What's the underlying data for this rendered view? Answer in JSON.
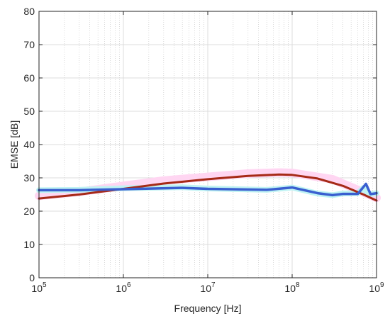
{
  "chart_data": {
    "type": "line",
    "title": "",
    "xlabel": "Frequency [Hz]",
    "ylabel": "EMSE [dB]",
    "xscale": "log",
    "xlim": [
      100000,
      1000000000
    ],
    "ylim": [
      0,
      80
    ],
    "grid": true,
    "legend": "none",
    "x_ticks": [
      {
        "base": "10",
        "exp": "5",
        "value": 100000
      },
      {
        "base": "10",
        "exp": "6",
        "value": 1000000
      },
      {
        "base": "10",
        "exp": "7",
        "value": 10000000
      },
      {
        "base": "10",
        "exp": "8",
        "value": 100000000
      },
      {
        "base": "10",
        "exp": "9",
        "value": 1000000000
      }
    ],
    "y_ticks": [
      "0",
      "10",
      "20",
      "30",
      "40",
      "50",
      "60",
      "70",
      "80"
    ],
    "series": [
      {
        "color": "#ffd6f2",
        "width": 12,
        "x": [
          100000,
          300000,
          1000000,
          3000000,
          10000000,
          30000000,
          70000000,
          100000000,
          300000000,
          1000000000
        ],
        "y": [
          24.6,
          25.8,
          27.6,
          29.2,
          30.3,
          31.3,
          31.6,
          31.5,
          29.6,
          24.0
        ]
      },
      {
        "color": "#bff3f3",
        "width": 8,
        "x": [
          100000,
          300000,
          1000000,
          5000000,
          10000000,
          50000000,
          100000000,
          200000000,
          300000000,
          400000000,
          600000000,
          700000000,
          800000000,
          1000000000
        ],
        "y": [
          26.3,
          26.4,
          26.9,
          27.2,
          26.8,
          26.4,
          27.1,
          25.3,
          24.8,
          25.3,
          25.4,
          27.0,
          25.0,
          25.4
        ]
      },
      {
        "color": "#a62a17",
        "width": 3,
        "x": [
          100000,
          300000,
          1000000,
          3000000,
          10000000,
          30000000,
          70000000,
          100000000,
          200000000,
          400000000,
          700000000,
          1000000000
        ],
        "y": [
          23.8,
          25.0,
          26.7,
          28.3,
          29.6,
          30.6,
          31.0,
          30.9,
          29.8,
          27.6,
          25.0,
          23.2
        ]
      },
      {
        "color": "#3a5fd0",
        "width": 3.5,
        "x": [
          100000,
          300000,
          1000000,
          5000000,
          10000000,
          50000000,
          100000000,
          200000000,
          300000000,
          400000000,
          600000000,
          750000000,
          850000000,
          1000000000
        ],
        "y": [
          26.3,
          26.3,
          26.6,
          27.0,
          26.7,
          26.4,
          27.1,
          25.4,
          24.8,
          25.2,
          25.2,
          28.2,
          25.1,
          25.4
        ]
      }
    ]
  }
}
